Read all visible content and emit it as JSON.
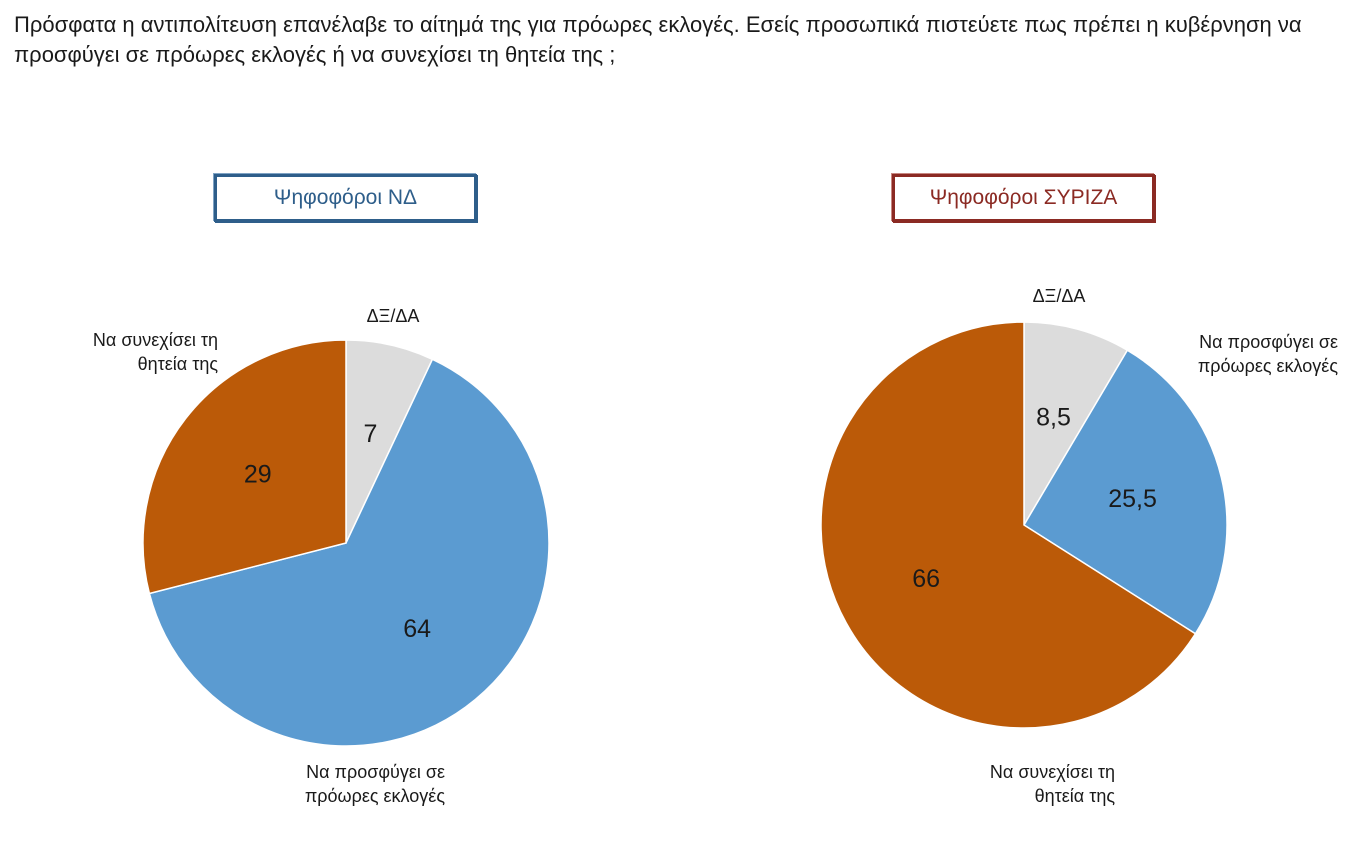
{
  "question": "Πρόσφατα η αντιπολίτευση επανέλαβε το αίτημά της για πρόωρες εκλογές. Εσείς προσωπικά πιστεύετε πως πρέπει η κυβέρνηση να προσφύγει σε πρόωρες εκλογές ή να συνεχίσει τη θητεία της ;",
  "colors": {
    "continue": "#bb5a08",
    "early_elections": "#5b9bd1",
    "dont_know": "#dcdcdc",
    "nd_accent": "#2e5e8a",
    "syriza_accent": "#8b2a23"
  },
  "chart_data": [
    {
      "type": "pie",
      "title": "Ψηφοφόροι ΝΔ",
      "slices": [
        {
          "key": "dont_know",
          "label_lines": [
            "ΔΞ/ΔΑ"
          ],
          "value": 7,
          "value_label": "7"
        },
        {
          "key": "early_elections",
          "label_lines": [
            "Να προσφύγει  σε",
            "πρόωρες εκλογές"
          ],
          "value": 64,
          "value_label": "64"
        },
        {
          "key": "continue",
          "label_lines": [
            "Να συνεχίσει τη",
            "θητεία της"
          ],
          "value": 29,
          "value_label": "29"
        }
      ]
    },
    {
      "type": "pie",
      "title": "Ψηφοφόροι ΣΥΡΙΖΑ",
      "slices": [
        {
          "key": "dont_know",
          "label_lines": [
            "ΔΞ/ΔΑ"
          ],
          "value": 8.5,
          "value_label": "8,5"
        },
        {
          "key": "early_elections",
          "label_lines": [
            "Να προσφύγει  σε",
            "πρόωρες εκλογές"
          ],
          "value": 25.5,
          "value_label": "25,5"
        },
        {
          "key": "continue",
          "label_lines": [
            "Να συνεχίσει τη",
            "θητεία της"
          ],
          "value": 66,
          "value_label": "66"
        }
      ]
    }
  ]
}
